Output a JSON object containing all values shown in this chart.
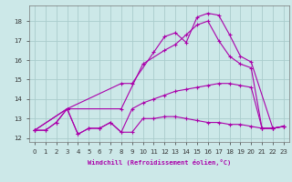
{
  "background_color": "#cce8e8",
  "grid_color": "#aacccc",
  "line_color": "#aa00aa",
  "xlabel": "Windchill (Refroidissement éolien,°C)",
  "xlim": [
    -0.5,
    23.5
  ],
  "ylim": [
    11.8,
    18.8
  ],
  "yticks": [
    12,
    13,
    14,
    15,
    16,
    17,
    18
  ],
  "xticks": [
    0,
    1,
    2,
    3,
    4,
    5,
    6,
    7,
    8,
    9,
    10,
    11,
    12,
    13,
    14,
    15,
    16,
    17,
    18,
    19,
    20,
    21,
    22,
    23
  ],
  "lines": [
    {
      "x": [
        0,
        1,
        2,
        3,
        4,
        5,
        6,
        7,
        8,
        9,
        10,
        11,
        12,
        13,
        14,
        15,
        16,
        17,
        18,
        19,
        20,
        21,
        22,
        23
      ],
      "y": [
        12.4,
        12.4,
        12.8,
        13.5,
        12.2,
        12.5,
        12.5,
        12.8,
        12.3,
        12.3,
        13.0,
        13.0,
        13.1,
        13.1,
        13.0,
        12.9,
        12.8,
        12.8,
        12.7,
        12.7,
        12.6,
        12.5,
        12.5,
        12.6
      ]
    },
    {
      "x": [
        0,
        1,
        2,
        3,
        4,
        5,
        6,
        7,
        8,
        9,
        10,
        11,
        12,
        13,
        14,
        15,
        16,
        17,
        18,
        19,
        20,
        21,
        22,
        23
      ],
      "y": [
        12.4,
        12.4,
        12.8,
        13.5,
        12.2,
        12.5,
        12.5,
        12.8,
        12.3,
        13.5,
        13.8,
        14.0,
        14.2,
        14.4,
        14.5,
        14.6,
        14.7,
        14.8,
        14.8,
        14.7,
        14.6,
        12.5,
        12.5,
        12.6
      ]
    },
    {
      "x": [
        0,
        3,
        8,
        10,
        12,
        13,
        14,
        15,
        16,
        17,
        18,
        19,
        20,
        21,
        22,
        23
      ],
      "y": [
        12.4,
        13.5,
        13.5,
        15.8,
        16.5,
        16.8,
        17.3,
        17.8,
        18.0,
        17.0,
        16.2,
        15.8,
        15.6,
        12.5,
        12.5,
        12.6
      ]
    },
    {
      "x": [
        0,
        3,
        8,
        9,
        11,
        12,
        13,
        14,
        15,
        16,
        17,
        18,
        19,
        20,
        22,
        23
      ],
      "y": [
        12.4,
        13.5,
        14.8,
        14.8,
        16.4,
        17.2,
        17.4,
        16.9,
        18.2,
        18.4,
        18.3,
        17.3,
        16.2,
        15.9,
        12.5,
        12.6
      ]
    }
  ]
}
